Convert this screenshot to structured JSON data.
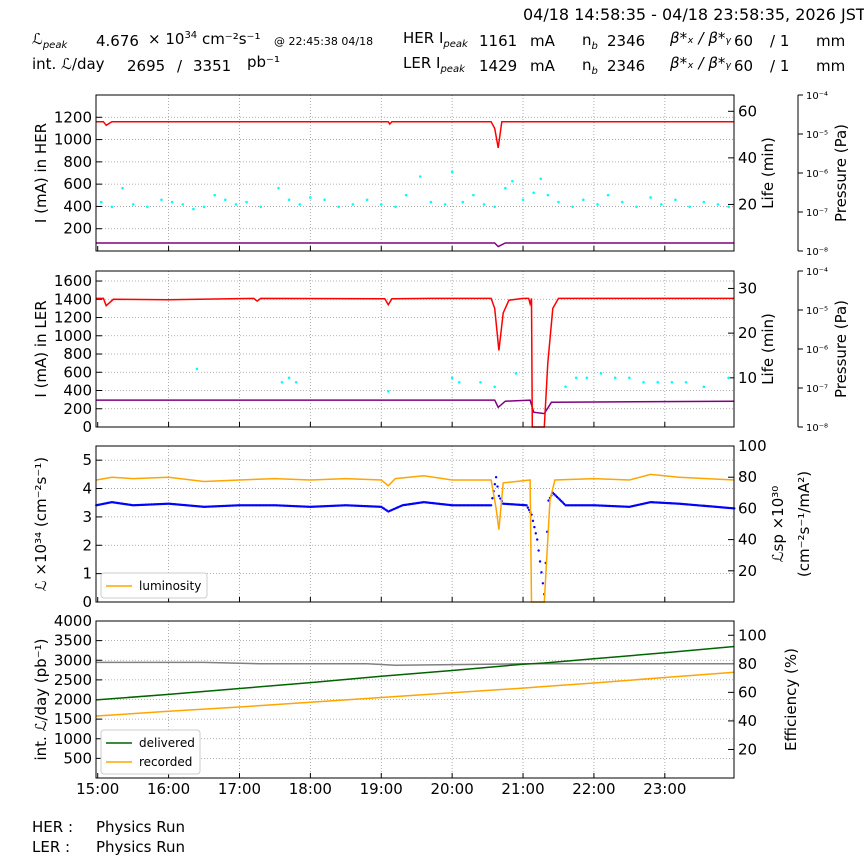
{
  "header": {
    "range": "04/18 14:58:35 - 04/18 23:58:35, 2026 JST",
    "lpeak_symbol": "ℒ",
    "lpeak_sub": "peak",
    "lpeak_value": "4.676",
    "lpeak_unit_pre": "× 10",
    "lpeak_exp": "34",
    "lpeak_unit": "cm⁻²s⁻¹",
    "lpeak_time": "@ 22:45:38 04/18",
    "intl_label": "int. ℒ/day",
    "intl_recorded": "2695",
    "intl_sep": "/",
    "intl_delivered": "3351",
    "intl_unit": "pb⁻¹",
    "her_label": "HER I",
    "ler_label": "LER I",
    "ipeak_sub": "peak",
    "her_ipeak": "1161",
    "ler_ipeak": "1429",
    "ma": "mA",
    "nb_label": "n",
    "nb_sub": "b",
    "her_nb": "2346",
    "ler_nb": "2346",
    "beta_label": "β*ₓ / β*ᵧ",
    "her_beta_x": "60",
    "her_beta_y": "/ 1",
    "ler_beta_x": "60",
    "ler_beta_y": "/ 1",
    "mm": "mm"
  },
  "footer": {
    "her_label": "HER :",
    "her_status": "Physics Run",
    "ler_label": "LER :",
    "ler_status": "Physics Run"
  },
  "colors": {
    "current": "#ff0000",
    "life": "#00ffff",
    "pressure": "#800080",
    "lum": "#ffa500",
    "lsp": "#0000ff",
    "delivered": "#006400",
    "recorded": "#ffa500",
    "eff": "#808080"
  },
  "chart_data": [
    {
      "type": "line",
      "name": "HER",
      "ylabel": "I (mA) in HER",
      "y2label": "Life (min)",
      "y3label": "Pressure (Pa)",
      "ylim": [
        0,
        1400
      ],
      "y2lim": [
        0,
        67
      ],
      "y3lim_log10": [
        -8,
        -4
      ],
      "yticks": [
        "200",
        "400",
        "600",
        "800",
        "1000",
        "1200"
      ],
      "y2ticks": [
        "20",
        "40",
        "60"
      ],
      "y3ticks": [
        "10⁻⁸",
        "10⁻⁷",
        "10⁻⁶",
        "10⁻⁵",
        "10⁻⁴"
      ],
      "current": [
        [
          14.98,
          1160
        ],
        [
          15.08,
          1160
        ],
        [
          15.12,
          1128
        ],
        [
          15.2,
          1160
        ],
        [
          19.1,
          1160
        ],
        [
          19.12,
          1140
        ],
        [
          19.15,
          1160
        ],
        [
          20.55,
          1160
        ],
        [
          20.6,
          1100
        ],
        [
          20.65,
          925
        ],
        [
          20.7,
          1160
        ],
        [
          23.98,
          1160
        ]
      ],
      "pressure": [
        [
          14.98,
          1.6e-08
        ],
        [
          20.6,
          1.6e-08
        ],
        [
          20.65,
          1.3e-08
        ],
        [
          20.75,
          1.6e-08
        ],
        [
          23.98,
          1.6e-08
        ]
      ],
      "life": [
        [
          15.05,
          21
        ],
        [
          15.2,
          19
        ],
        [
          15.35,
          27
        ],
        [
          15.5,
          20
        ],
        [
          15.7,
          19
        ],
        [
          15.9,
          22
        ],
        [
          16.05,
          21
        ],
        [
          16.2,
          20
        ],
        [
          16.35,
          18
        ],
        [
          16.5,
          19
        ],
        [
          16.65,
          24
        ],
        [
          16.8,
          22
        ],
        [
          16.95,
          20
        ],
        [
          17.1,
          21
        ],
        [
          17.3,
          19
        ],
        [
          17.55,
          27
        ],
        [
          17.7,
          22
        ],
        [
          17.85,
          20
        ],
        [
          18.0,
          23
        ],
        [
          18.2,
          22
        ],
        [
          18.4,
          19
        ],
        [
          18.6,
          20
        ],
        [
          18.8,
          22
        ],
        [
          19.0,
          20
        ],
        [
          19.2,
          19
        ],
        [
          19.35,
          24
        ],
        [
          19.55,
          32
        ],
        [
          19.7,
          21
        ],
        [
          19.9,
          20
        ],
        [
          20.0,
          34
        ],
        [
          20.15,
          21
        ],
        [
          20.3,
          24
        ],
        [
          20.45,
          20
        ],
        [
          20.6,
          19
        ],
        [
          20.75,
          27
        ],
        [
          20.85,
          30
        ],
        [
          21.0,
          22
        ],
        [
          21.15,
          25
        ],
        [
          21.25,
          31
        ],
        [
          21.35,
          24
        ],
        [
          21.5,
          21
        ],
        [
          21.7,
          19
        ],
        [
          21.85,
          22
        ],
        [
          22.05,
          20
        ],
        [
          22.2,
          24
        ],
        [
          22.4,
          21
        ],
        [
          22.6,
          19
        ],
        [
          22.8,
          23
        ],
        [
          22.95,
          20
        ],
        [
          23.15,
          22
        ],
        [
          23.35,
          19
        ],
        [
          23.55,
          21
        ],
        [
          23.75,
          20
        ],
        [
          23.9,
          19
        ]
      ]
    },
    {
      "type": "line",
      "name": "LER",
      "ylabel": "I (mA) in LER",
      "y2label": "Life (min)",
      "y3label": "Pressure (Pa)",
      "ylim": [
        0,
        1710
      ],
      "y2lim": [
        -1,
        33.9
      ],
      "y3lim_log10": [
        -8,
        -4
      ],
      "yticks": [
        "0",
        "200",
        "400",
        "600",
        "800",
        "1000",
        "1200",
        "1400",
        "1600"
      ],
      "y2ticks": [
        "10",
        "20",
        "30"
      ],
      "y3ticks": [
        "10⁻⁸",
        "10⁻⁷",
        "10⁻⁶",
        "10⁻⁵",
        "10⁻⁴"
      ],
      "current": [
        [
          14.98,
          1410
        ],
        [
          15.08,
          1410
        ],
        [
          15.12,
          1330
        ],
        [
          15.22,
          1400
        ],
        [
          16.0,
          1395
        ],
        [
          17.2,
          1410
        ],
        [
          17.25,
          1380
        ],
        [
          17.3,
          1410
        ],
        [
          19.05,
          1405
        ],
        [
          19.1,
          1340
        ],
        [
          19.15,
          1405
        ],
        [
          19.7,
          1410
        ],
        [
          20.55,
          1410
        ],
        [
          20.6,
          1300
        ],
        [
          20.66,
          840
        ],
        [
          20.72,
          1250
        ],
        [
          20.8,
          1390
        ],
        [
          21.0,
          1410
        ],
        [
          21.08,
          1410
        ],
        [
          21.1,
          1350
        ],
        [
          21.12,
          1410
        ],
        [
          21.13,
          0
        ],
        [
          21.3,
          0
        ],
        [
          21.35,
          700
        ],
        [
          21.42,
          1300
        ],
        [
          21.5,
          1410
        ],
        [
          23.98,
          1410
        ]
      ],
      "pressure": [
        [
          14.98,
          4.9e-08
        ],
        [
          20.6,
          4.9e-08
        ],
        [
          20.65,
          3.2e-08
        ],
        [
          20.75,
          4.6e-08
        ],
        [
          21.1,
          4.9e-08
        ],
        [
          21.15,
          2.4e-08
        ],
        [
          21.3,
          2.2e-08
        ],
        [
          21.4,
          4.3e-08
        ],
        [
          23.98,
          4.6e-08
        ]
      ],
      "life": [
        [
          16.4,
          12
        ],
        [
          17.6,
          9
        ],
        [
          17.7,
          10
        ],
        [
          17.8,
          9
        ],
        [
          19.1,
          7
        ],
        [
          20.0,
          10
        ],
        [
          20.1,
          9
        ],
        [
          20.4,
          9
        ],
        [
          20.6,
          8
        ],
        [
          20.9,
          11
        ],
        [
          21.6,
          8
        ],
        [
          21.75,
          10
        ],
        [
          21.9,
          10
        ],
        [
          22.1,
          11
        ],
        [
          22.3,
          10
        ],
        [
          22.5,
          10
        ],
        [
          22.7,
          9
        ],
        [
          22.9,
          9
        ],
        [
          23.1,
          9
        ],
        [
          23.3,
          9
        ],
        [
          23.55,
          8
        ],
        [
          23.9,
          10
        ]
      ]
    },
    {
      "type": "line",
      "name": "Luminosity",
      "ylabel": "ℒ ×10³⁴ (cm⁻²s⁻¹)",
      "y2label": "ℒsp ×10³⁰",
      "y2label2": "(cm⁻²s⁻¹/mA²)",
      "ylim": [
        0,
        5.5
      ],
      "y2lim": [
        0,
        100
      ],
      "yticks": [
        "0",
        "1",
        "2",
        "3",
        "4",
        "5"
      ],
      "y2ticks": [
        "20",
        "40",
        "60",
        "80",
        "100"
      ],
      "legend": [
        "luminosity"
      ],
      "legend_loc": "lower left",
      "luminosity": [
        [
          14.98,
          4.3
        ],
        [
          15.2,
          4.4
        ],
        [
          15.5,
          4.35
        ],
        [
          16.0,
          4.4
        ],
        [
          16.5,
          4.25
        ],
        [
          17.0,
          4.3
        ],
        [
          17.5,
          4.35
        ],
        [
          18.0,
          4.3
        ],
        [
          18.5,
          4.35
        ],
        [
          19.0,
          4.3
        ],
        [
          19.1,
          4.1
        ],
        [
          19.2,
          4.35
        ],
        [
          19.6,
          4.45
        ],
        [
          20.0,
          4.3
        ],
        [
          20.55,
          4.3
        ],
        [
          20.62,
          3.3
        ],
        [
          20.66,
          2.55
        ],
        [
          20.72,
          4.2
        ],
        [
          21.1,
          4.3
        ],
        [
          21.12,
          0
        ],
        [
          21.3,
          0
        ],
        [
          21.38,
          3.6
        ],
        [
          21.45,
          4.3
        ],
        [
          22.0,
          4.35
        ],
        [
          22.5,
          4.3
        ],
        [
          22.8,
          4.5
        ],
        [
          23.2,
          4.4
        ],
        [
          23.98,
          4.3
        ]
      ],
      "specific": [
        [
          14.98,
          62
        ],
        [
          15.2,
          64
        ],
        [
          15.5,
          62
        ],
        [
          16.0,
          63
        ],
        [
          16.5,
          61
        ],
        [
          17.0,
          62
        ],
        [
          17.5,
          62
        ],
        [
          18.0,
          61
        ],
        [
          18.5,
          62
        ],
        [
          19.0,
          61
        ],
        [
          19.1,
          58
        ],
        [
          19.3,
          62
        ],
        [
          19.6,
          64
        ],
        [
          20.0,
          62
        ],
        [
          20.55,
          62
        ],
        [
          20.62,
          80
        ],
        [
          20.66,
          68
        ],
        [
          20.72,
          63
        ],
        [
          21.05,
          62
        ],
        [
          21.12,
          56
        ],
        [
          21.2,
          40
        ],
        [
          21.3,
          5
        ],
        [
          21.36,
          65
        ],
        [
          21.42,
          70
        ],
        [
          21.6,
          62
        ],
        [
          22.0,
          62
        ],
        [
          22.5,
          61
        ],
        [
          22.8,
          64
        ],
        [
          23.2,
          63
        ],
        [
          23.98,
          60
        ]
      ]
    },
    {
      "type": "line",
      "name": "Integrated",
      "ylabel": "int. ℒ/day (pb⁻¹)",
      "y2label": "Efficiency (%)",
      "ylim": [
        0,
        4000
      ],
      "y2lim": [
        0,
        110
      ],
      "yticks": [
        "500",
        "1000",
        "1500",
        "2000",
        "2500",
        "3000",
        "3500",
        "4000"
      ],
      "y2ticks": [
        "20",
        "40",
        "60",
        "80",
        "100"
      ],
      "xticks": [
        "15:00",
        "16:00",
        "17:00",
        "18:00",
        "19:00",
        "20:00",
        "21:00",
        "22:00",
        "23:00"
      ],
      "legend": [
        "delivered",
        "recorded"
      ],
      "legend_loc": "lower left",
      "delivered": [
        [
          14.98,
          1990
        ],
        [
          16,
          2130
        ],
        [
          17,
          2280
        ],
        [
          18,
          2430
        ],
        [
          19,
          2590
        ],
        [
          20,
          2740
        ],
        [
          21,
          2900
        ],
        [
          21.3,
          2930
        ],
        [
          22,
          3040
        ],
        [
          23,
          3190
        ],
        [
          23.98,
          3351
        ]
      ],
      "recorded": [
        [
          14.98,
          1580
        ],
        [
          16,
          1700
        ],
        [
          17,
          1810
        ],
        [
          18,
          1930
        ],
        [
          19,
          2050
        ],
        [
          20,
          2170
        ],
        [
          21,
          2290
        ],
        [
          21.3,
          2330
        ],
        [
          22,
          2420
        ],
        [
          23,
          2560
        ],
        [
          23.98,
          2695
        ]
      ],
      "efficiency": [
        [
          14.98,
          81
        ],
        [
          16.5,
          81
        ],
        [
          17.3,
          80
        ],
        [
          18.8,
          80
        ],
        [
          19.2,
          79
        ],
        [
          21.0,
          80
        ],
        [
          23.98,
          80
        ]
      ]
    }
  ]
}
